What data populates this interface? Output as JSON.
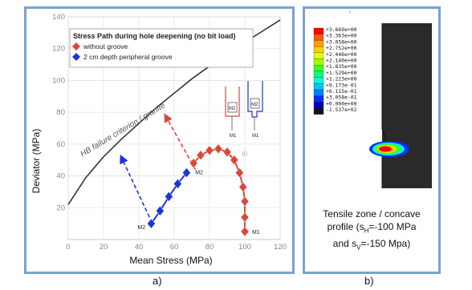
{
  "panel_a_label": "a)",
  "panel_b_label": "b)",
  "colors": {
    "border": "#7aa2cd",
    "red": "#d9483b",
    "blue": "#1a35d6",
    "contour_black": "#2a2a2a"
  },
  "chart_data": {
    "type": "scatter",
    "title": "Stress Path during hole deepening (no bit load)",
    "xlabel": "Mean Stress (MPa)",
    "ylabel": "Deviator (MPa)",
    "xlim": [
      0,
      120
    ],
    "ylim": [
      0,
      140
    ],
    "x_ticks": [
      "0",
      "20",
      "40",
      "60",
      "80",
      "100",
      "120"
    ],
    "y_ticks": [
      "20",
      "40",
      "60",
      "80",
      "100",
      "120",
      "140"
    ],
    "grid": true,
    "legend_position": "top-left",
    "series": [
      {
        "name": "without groove",
        "color": "#d9483b",
        "x": [
          71,
          75,
          80,
          85,
          90,
          94,
          97,
          99,
          100,
          100,
          100
        ],
        "y": [
          48,
          53,
          56,
          57,
          55,
          50,
          42,
          33,
          24,
          14,
          5
        ]
      },
      {
        "name": "2 cm depth peripheral groove",
        "color": "#1a35d6",
        "x": [
          47,
          52,
          57,
          62,
          67
        ],
        "y": [
          10,
          18,
          27,
          35,
          42
        ]
      }
    ],
    "criterion_curve": {
      "label": "HB failure criterion / granite",
      "x": [
        0,
        10,
        20,
        30,
        40,
        50,
        60,
        70,
        80,
        90,
        100,
        110,
        120
      ],
      "y": [
        22,
        39,
        52,
        63,
        73,
        83,
        92,
        101,
        109,
        117,
        124,
        131,
        138
      ]
    },
    "annotations": {
      "start": "M1",
      "end": "M2",
      "schematic_a": "M2",
      "schematic_b": "M2",
      "schematic_c": "M1",
      "schematic_d": "M1",
      "small_label": "a)"
    }
  },
  "contour": {
    "levels": [
      "+3.669e+00",
      "+3.363e+00",
      "+3.058e+00",
      "+2.752e+00",
      "+2.446e+00",
      "+2.140e+00",
      "+1.835e+00",
      "+1.529e+00",
      "+1.223e+00",
      "+9.173e-01",
      "+6.115e-01",
      "+3.058e-01",
      "+0.000e+00",
      "-1.537e+02"
    ],
    "level_colors": [
      "#ff0000",
      "#ff5a00",
      "#ffa000",
      "#ffd200",
      "#e6ff00",
      "#a0ff00",
      "#40ff20",
      "#00ff80",
      "#00ffd0",
      "#00c8ff",
      "#0080ff",
      "#0030ff",
      "#0000c0",
      "#141414"
    ],
    "caption_line1": "Tensile zone / concave",
    "caption_line2_prefix": "profile (s",
    "caption_line2_sub": "H",
    "caption_line2_suffix": "=-100 MPa",
    "caption_line3_prefix": "and s",
    "caption_line3_sub": "V",
    "caption_line3_suffix": "=-150 Mpa)"
  }
}
